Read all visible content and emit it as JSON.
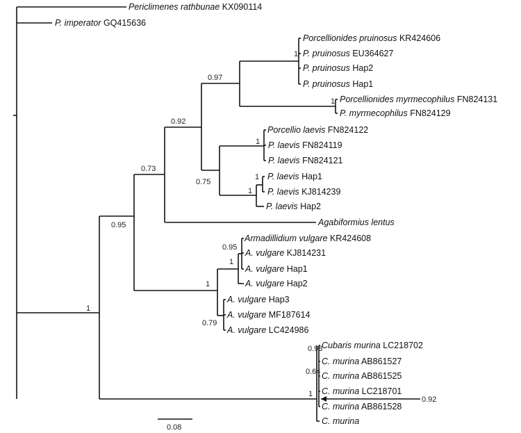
{
  "leaves": [
    {
      "genus": "Periclimenes rathbunae",
      "acc": "KX090114"
    },
    {
      "genus": "P. imperator",
      "acc": "GQ415636"
    },
    {
      "genus": "Porcellionides pruinosus",
      "acc": "KR424606"
    },
    {
      "genus": "P. pruinosus",
      "acc": "EU364627"
    },
    {
      "genus": "P. pruinosus",
      "acc": "Hap2"
    },
    {
      "genus": "P. pruinosus",
      "acc": "Hap1"
    },
    {
      "genus": "Porcellionides myrmecophilus",
      "acc": "FN824131"
    },
    {
      "genus": "P. myrmecophilus",
      "acc": "FN824129"
    },
    {
      "genus": "Porcellio laevis",
      "acc": "FN824122"
    },
    {
      "genus": "P. laevis",
      "acc": "FN824119"
    },
    {
      "genus": "P. laevis",
      "acc": "FN824121"
    },
    {
      "genus": "P. laevis",
      "acc": "Hap1"
    },
    {
      "genus": "P. laevis",
      "acc": "KJ814239"
    },
    {
      "genus": "P. laevis",
      "acc": "Hap2"
    },
    {
      "genus": "Agabiformius lentus",
      "acc": ""
    },
    {
      "genus": "Armadillidium vulgare",
      "acc": "KR424608"
    },
    {
      "genus": "A. vulgare",
      "acc": "KJ814231"
    },
    {
      "genus": "A. vulgare",
      "acc": "Hap1"
    },
    {
      "genus": "A. vulgare",
      "acc": "Hap2"
    },
    {
      "genus": "A. vulgare",
      "acc": "Hap3"
    },
    {
      "genus": "A. vulgare",
      "acc": "MF187614"
    },
    {
      "genus": "A. vulgare",
      "acc": "LC424986"
    },
    {
      "genus": "Cubaris murina",
      "acc": "LC218702"
    },
    {
      "genus": "C. murina",
      "acc": "AB861527"
    },
    {
      "genus": "C. murina",
      "acc": "AB861525"
    },
    {
      "genus": "C. murina",
      "acc": "LC218701"
    },
    {
      "genus": "C. murina",
      "acc": "AB861528"
    },
    {
      "genus": "C. murina",
      "acc": ""
    }
  ],
  "support": [
    "1",
    "0.95",
    "0.73",
    "0.92",
    "0.97",
    "1",
    "1",
    "1",
    "0.75",
    "1",
    "1",
    "1",
    "1",
    "0.95",
    "0.79",
    "0.98",
    "0.64",
    "1",
    "0.92"
  ],
  "scale_bar": "0.08"
}
